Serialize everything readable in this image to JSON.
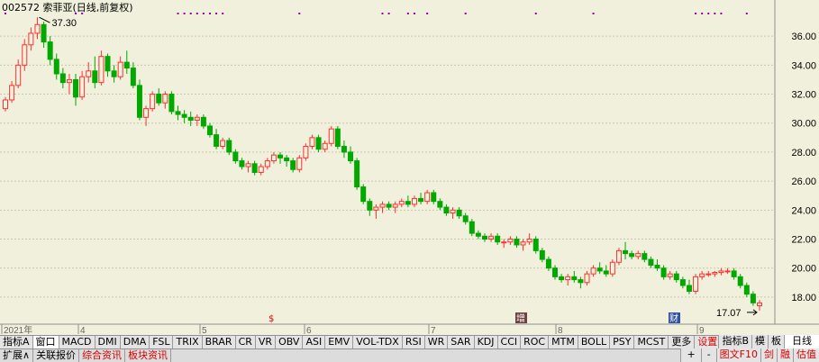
{
  "title": {
    "code": "002572",
    "name": "索菲亚",
    "mode": "(日线,前复权)"
  },
  "price_axis": {
    "ticks": [
      "36.00",
      "34.00",
      "32.00",
      "30.00",
      "28.00",
      "26.00",
      "24.00",
      "22.00",
      "20.00",
      "18.00"
    ]
  },
  "date_axis": {
    "labels": [
      "2021年",
      "4",
      "5",
      "6",
      "7",
      "8",
      "9"
    ]
  },
  "annotations": {
    "high_label": "37.30",
    "low_label": "17.07",
    "mark_s": "$",
    "mark_zeng": "增",
    "mark_cai": "财"
  },
  "colors": {
    "up": "#ff3030",
    "down": "#00a800",
    "grid": "#c8c8b0",
    "background": "#f0f0dc",
    "event_dot": "#a000a0"
  },
  "chart_data": {
    "type": "candlestick",
    "ylim": [
      17,
      37.5
    ],
    "dates_shown": [
      "2021年",
      "4",
      "5",
      "6",
      "7",
      "8",
      "9"
    ],
    "ohlc": [
      [
        31.0,
        31.8,
        30.8,
        31.6
      ],
      [
        31.6,
        32.9,
        31.4,
        32.6
      ],
      [
        32.6,
        34.4,
        32.4,
        34.0
      ],
      [
        34.0,
        35.8,
        33.6,
        35.4
      ],
      [
        35.4,
        36.6,
        35.0,
        36.2
      ],
      [
        36.2,
        37.3,
        35.8,
        36.8
      ],
      [
        36.8,
        37.0,
        35.2,
        35.6
      ],
      [
        35.6,
        36.0,
        34.0,
        34.4
      ],
      [
        34.4,
        34.8,
        33.0,
        33.4
      ],
      [
        33.4,
        33.8,
        32.4,
        32.8
      ],
      [
        32.8,
        33.4,
        32.0,
        33.0
      ],
      [
        33.0,
        33.4,
        31.2,
        31.8
      ],
      [
        31.8,
        33.6,
        31.6,
        33.2
      ],
      [
        33.2,
        34.2,
        32.8,
        33.6
      ],
      [
        33.6,
        34.6,
        32.4,
        32.8
      ],
      [
        32.8,
        35.0,
        32.6,
        34.6
      ],
      [
        34.6,
        34.8,
        33.2,
        33.6
      ],
      [
        33.6,
        34.0,
        32.8,
        33.2
      ],
      [
        33.2,
        34.6,
        33.0,
        34.2
      ],
      [
        34.2,
        35.0,
        33.4,
        33.8
      ],
      [
        33.8,
        34.2,
        32.4,
        32.6
      ],
      [
        32.6,
        33.0,
        30.2,
        30.4
      ],
      [
        30.4,
        31.2,
        29.8,
        31.0
      ],
      [
        31.0,
        32.2,
        30.8,
        32.0
      ],
      [
        32.0,
        32.4,
        31.2,
        31.4
      ],
      [
        31.4,
        32.2,
        31.0,
        32.0
      ],
      [
        32.0,
        32.2,
        30.6,
        30.8
      ],
      [
        30.8,
        31.2,
        30.2,
        30.6
      ],
      [
        30.6,
        30.9,
        30.0,
        30.4
      ],
      [
        30.4,
        30.8,
        29.8,
        30.2
      ],
      [
        30.2,
        30.6,
        29.8,
        30.4
      ],
      [
        30.4,
        30.6,
        29.6,
        29.8
      ],
      [
        29.8,
        30.0,
        29.0,
        29.2
      ],
      [
        29.2,
        29.6,
        28.2,
        28.4
      ],
      [
        28.4,
        29.0,
        28.2,
        28.8
      ],
      [
        28.8,
        29.0,
        27.8,
        28.0
      ],
      [
        28.0,
        28.2,
        27.2,
        27.4
      ],
      [
        27.4,
        27.6,
        26.8,
        27.0
      ],
      [
        27.0,
        27.4,
        26.6,
        27.2
      ],
      [
        27.2,
        27.4,
        26.4,
        26.6
      ],
      [
        26.6,
        27.2,
        26.4,
        27.0
      ],
      [
        27.0,
        27.6,
        26.8,
        27.4
      ],
      [
        27.4,
        28.0,
        27.2,
        27.8
      ],
      [
        27.8,
        28.0,
        27.2,
        27.6
      ],
      [
        27.6,
        27.8,
        27.0,
        27.4
      ],
      [
        27.4,
        27.6,
        26.6,
        26.8
      ],
      [
        26.8,
        27.8,
        26.6,
        27.6
      ],
      [
        27.6,
        28.6,
        27.4,
        28.4
      ],
      [
        28.4,
        29.2,
        28.2,
        29.0
      ],
      [
        29.0,
        29.2,
        28.0,
        28.2
      ],
      [
        28.2,
        28.8,
        28.0,
        28.6
      ],
      [
        28.6,
        29.8,
        28.4,
        29.6
      ],
      [
        29.6,
        29.8,
        28.2,
        28.4
      ],
      [
        28.4,
        28.8,
        27.6,
        28.0
      ],
      [
        28.0,
        28.4,
        27.2,
        27.4
      ],
      [
        27.4,
        27.6,
        25.4,
        25.6
      ],
      [
        25.6,
        25.8,
        24.4,
        24.6
      ],
      [
        24.6,
        24.8,
        23.6,
        24.0
      ],
      [
        24.0,
        24.4,
        23.4,
        24.2
      ],
      [
        24.2,
        24.6,
        23.8,
        24.4
      ],
      [
        24.4,
        24.6,
        24.0,
        24.2
      ],
      [
        24.2,
        24.6,
        23.8,
        24.4
      ],
      [
        24.4,
        24.8,
        24.2,
        24.6
      ],
      [
        24.6,
        25.0,
        24.2,
        24.4
      ],
      [
        24.4,
        25.0,
        24.2,
        24.8
      ],
      [
        24.8,
        25.2,
        24.4,
        24.6
      ],
      [
        24.6,
        25.4,
        24.4,
        25.2
      ],
      [
        25.2,
        25.4,
        24.4,
        24.6
      ],
      [
        24.6,
        24.8,
        24.0,
        24.2
      ],
      [
        24.2,
        24.4,
        23.6,
        23.8
      ],
      [
        23.8,
        24.2,
        23.4,
        24.0
      ],
      [
        24.0,
        24.2,
        23.4,
        23.6
      ],
      [
        23.6,
        23.8,
        23.0,
        23.2
      ],
      [
        23.2,
        23.4,
        22.2,
        22.4
      ],
      [
        22.4,
        22.6,
        22.0,
        22.2
      ],
      [
        22.2,
        22.4,
        21.8,
        22.0
      ],
      [
        22.0,
        22.4,
        21.8,
        22.2
      ],
      [
        22.2,
        22.4,
        21.6,
        21.8
      ],
      [
        21.8,
        22.0,
        21.4,
        21.8
      ],
      [
        21.8,
        22.2,
        21.6,
        22.0
      ],
      [
        22.0,
        22.2,
        21.4,
        21.6
      ],
      [
        21.6,
        22.0,
        21.2,
        21.8
      ],
      [
        21.8,
        22.4,
        21.6,
        22.0
      ],
      [
        22.0,
        22.2,
        21.0,
        21.2
      ],
      [
        21.2,
        21.4,
        20.4,
        20.6
      ],
      [
        20.6,
        20.8,
        19.8,
        20.0
      ],
      [
        20.0,
        20.2,
        19.2,
        19.4
      ],
      [
        19.4,
        19.6,
        19.0,
        19.2
      ],
      [
        19.2,
        19.6,
        18.8,
        19.4
      ],
      [
        19.4,
        19.8,
        19.0,
        19.2
      ],
      [
        19.2,
        19.4,
        18.6,
        19.0
      ],
      [
        19.0,
        19.8,
        18.8,
        19.6
      ],
      [
        19.6,
        20.2,
        19.4,
        20.0
      ],
      [
        20.0,
        20.4,
        19.6,
        19.8
      ],
      [
        19.8,
        20.2,
        19.4,
        19.6
      ],
      [
        19.6,
        20.6,
        19.4,
        20.4
      ],
      [
        20.4,
        21.4,
        20.2,
        21.2
      ],
      [
        21.2,
        21.8,
        20.6,
        21.0
      ],
      [
        21.0,
        21.2,
        20.6,
        20.8
      ],
      [
        20.8,
        21.2,
        20.6,
        21.0
      ],
      [
        21.0,
        21.2,
        20.4,
        20.6
      ],
      [
        20.6,
        20.8,
        20.0,
        20.2
      ],
      [
        20.2,
        20.6,
        19.8,
        20.0
      ],
      [
        20.0,
        20.2,
        19.2,
        19.4
      ],
      [
        19.4,
        19.8,
        19.2,
        19.6
      ],
      [
        19.6,
        19.8,
        19.0,
        19.2
      ],
      [
        19.2,
        19.4,
        18.6,
        18.8
      ],
      [
        18.8,
        19.2,
        18.2,
        18.4
      ],
      [
        18.4,
        19.6,
        18.2,
        19.4
      ],
      [
        19.4,
        19.8,
        19.2,
        19.6
      ],
      [
        19.6,
        19.8,
        19.4,
        19.6
      ],
      [
        19.6,
        19.8,
        19.4,
        19.7
      ],
      [
        19.7,
        20.0,
        19.5,
        19.8
      ],
      [
        19.8,
        20.0,
        19.6,
        19.8
      ],
      [
        19.8,
        20.0,
        19.2,
        19.4
      ],
      [
        19.4,
        19.6,
        18.6,
        18.8
      ],
      [
        18.8,
        19.0,
        18.0,
        18.2
      ],
      [
        18.2,
        18.4,
        17.4,
        17.6
      ],
      [
        17.4,
        17.8,
        17.07,
        17.6
      ]
    ],
    "event_dot_indices": [
      0,
      11,
      12,
      27,
      28,
      29,
      30,
      31,
      32,
      33,
      34,
      46,
      59,
      60,
      63,
      64,
      66,
      72,
      83,
      92,
      108,
      109,
      110,
      111,
      112,
      116
    ]
  },
  "indicator_tabs": [
    "指标A",
    "窗口",
    "MACD",
    "DMI",
    "DMA",
    "FSL",
    "TRIX",
    "BRAR",
    "CR",
    "VR",
    "OBV",
    "ASI",
    "EMV",
    "VOL-TDX",
    "RSI",
    "WR",
    "SAR",
    "KDJ",
    "CCI",
    "ROC",
    "MTM",
    "BOLL",
    "PSY",
    "MCST",
    "更多",
    "设置"
  ],
  "right_tabs": [
    "指标B",
    "模",
    "板"
  ],
  "right_top": [
    "日线"
  ],
  "right_small": [
    "+",
    "-"
  ],
  "bottom_tabs": [
    "扩展∧",
    "关联报价",
    "综合资讯",
    "板块资讯"
  ],
  "bottom_right": [
    "图文F10",
    "剑",
    "融",
    "估值"
  ]
}
